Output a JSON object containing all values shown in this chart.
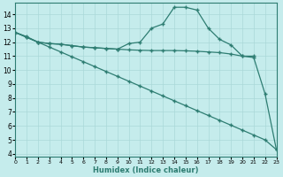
{
  "line1_x": [
    0,
    1,
    2,
    3,
    4,
    5,
    6,
    7,
    8,
    9,
    10,
    11,
    12,
    13,
    14,
    15,
    16,
    17,
    18,
    19,
    20,
    21,
    22,
    23
  ],
  "line1_y": [
    12.7,
    12.4,
    12.0,
    11.9,
    11.85,
    11.75,
    11.65,
    11.6,
    11.55,
    11.5,
    11.9,
    12.0,
    13.0,
    13.3,
    14.5,
    14.5,
    14.3,
    13.0,
    12.2,
    11.8,
    11.0,
    10.9,
    8.3,
    4.3
  ],
  "line2_x": [
    0,
    1,
    2,
    3,
    4,
    5,
    6,
    7,
    8,
    9,
    10,
    11,
    12,
    13,
    14,
    15,
    16,
    17,
    18,
    19,
    20,
    21
  ],
  "line2_y": [
    12.7,
    12.35,
    12.0,
    11.9,
    11.85,
    11.75,
    11.65,
    11.6,
    11.55,
    11.5,
    11.45,
    11.42,
    11.4,
    11.4,
    11.4,
    11.38,
    11.35,
    11.3,
    11.25,
    11.15,
    11.0,
    11.0
  ],
  "line3_x": [
    0,
    1,
    2,
    3,
    4,
    5,
    6,
    7,
    8,
    9,
    10,
    11,
    12,
    13,
    14,
    15,
    16,
    17,
    18,
    19,
    20,
    21,
    22,
    23
  ],
  "line3_y": [
    12.7,
    12.35,
    12.0,
    11.65,
    11.3,
    10.95,
    10.6,
    10.25,
    9.9,
    9.55,
    9.2,
    8.85,
    8.5,
    8.15,
    7.8,
    7.45,
    7.1,
    6.75,
    6.4,
    6.05,
    5.7,
    5.35,
    5.0,
    4.3
  ],
  "line_color": "#2e7d72",
  "bg_color": "#c5ecec",
  "grid_color": "#aad8d8",
  "xlabel": "Humidex (Indice chaleur)",
  "xlim": [
    0,
    23
  ],
  "ylim": [
    3.8,
    14.8
  ],
  "yticks": [
    4,
    5,
    6,
    7,
    8,
    9,
    10,
    11,
    12,
    13,
    14
  ],
  "xticks": [
    0,
    1,
    2,
    3,
    4,
    5,
    6,
    7,
    8,
    9,
    10,
    11,
    12,
    13,
    14,
    15,
    16,
    17,
    18,
    19,
    20,
    21,
    22,
    23
  ],
  "xtick_labels": [
    "0",
    "1",
    "2",
    "3",
    "4",
    "5",
    "6",
    "7",
    "8",
    "9",
    "10",
    "11",
    "12",
    "13",
    "14",
    "15",
    "16",
    "17",
    "18",
    "19",
    "20",
    "21",
    "22",
    "23"
  ],
  "marker": "+"
}
